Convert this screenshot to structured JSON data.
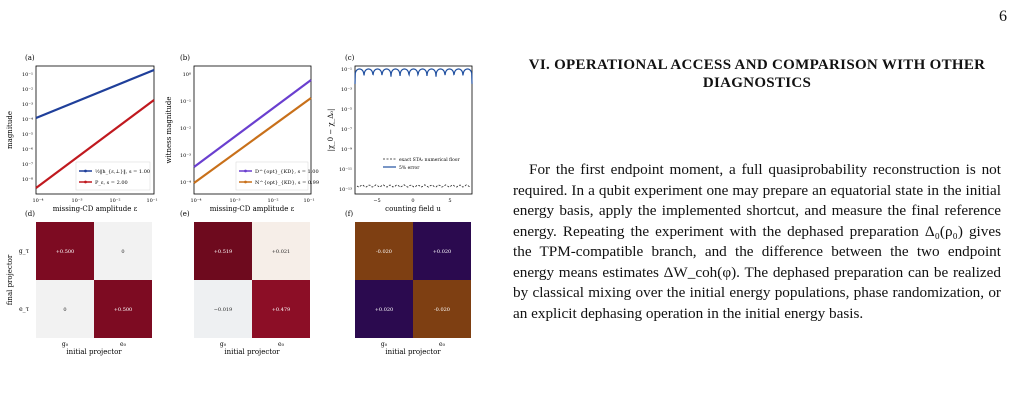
{
  "page_number": "6",
  "section": {
    "title": "VI.   OPERATIONAL ACCESS AND COMPARISON WITH OTHER DIAGNOSTICS",
    "paragraph": "For the first endpoint moment, a full quasiprobability reconstruction is not required. In a qubit experiment one may prepare an equatorial state in the initial energy basis, apply the implemented shortcut, and measure the final reference energy. Repeating the experiment with the dephased preparation Δ₀(ρ₀) gives the TPM-compatible branch, and the difference between the two endpoint energy means estimates ΔW_coh(φ). The dephased preparation can be realized by classical mixing over the initial energy populations, phase randomization, or an explicit dephasing operation in the initial energy basis."
  },
  "chart_data": [
    {
      "panel": "(a)",
      "type": "line",
      "xscale": "log",
      "yscale": "log",
      "xlabel": "missing-CD amplitude ε",
      "ylabel": "magnitude",
      "xlim": [
        0.0001,
        0.1
      ],
      "ylim": [
        1e-09,
        1
      ],
      "xticks": [
        "10⁻⁴",
        "10⁻³",
        "10⁻²",
        "10⁻¹"
      ],
      "yticks": [
        "10⁻¹",
        "10⁻²",
        "10⁻³",
        "10⁻⁴",
        "10⁻⁵",
        "10⁻⁶",
        "10⁻⁷",
        "10⁻⁸"
      ],
      "series": [
        {
          "name": "½‖h_{ε,⊥}‖, s = 1.00",
          "color": "#1f3f9a",
          "x": [
            0.0001,
            0.1
          ],
          "y": [
            0.000126,
            0.126
          ]
        },
        {
          "name": "P_ε, s = 2.00",
          "color": "#c0191f",
          "x": [
            0.0001,
            0.1
          ],
          "y": [
            1e-08,
            0.01
          ]
        }
      ]
    },
    {
      "panel": "(b)",
      "type": "line",
      "xscale": "log",
      "yscale": "log",
      "xlabel": "missing-CD amplitude ε",
      "ylabel": "witness magnitude",
      "xlim": [
        0.0001,
        0.1
      ],
      "ylim": [
        3e-05,
        2
      ],
      "xticks": [
        "10⁻⁴",
        "10⁻³",
        "10⁻²",
        "10⁻¹"
      ],
      "yticks": [
        "10⁰",
        "10⁻¹",
        "10⁻²",
        "10⁻³",
        "10⁻⁴"
      ],
      "series": [
        {
          "name": "D^{opt}_{KD}, s = 1.00",
          "color": "#6a3fcf",
          "x": [
            0.0001,
            0.1
          ],
          "y": [
            0.00022,
            0.22
          ]
        },
        {
          "name": "N^{opt}_{KD}, s = 0.99",
          "color": "#c8701a",
          "x": [
            0.0001,
            0.1
          ],
          "y": [
            5e-05,
            0.05
          ]
        }
      ]
    },
    {
      "panel": "(c)",
      "type": "line",
      "yscale": "log",
      "xlabel": "counting field u",
      "ylabel": "|χ_0 − χ_Δ₀|",
      "xlim": [
        -8,
        8
      ],
      "ylim": [
        1e-15,
        0.1
      ],
      "xticks": [
        "−5",
        "0",
        "5"
      ],
      "yticks": [
        "10⁻¹",
        "10⁻³",
        "10⁻⁵",
        "10⁻⁷",
        "10⁻⁹",
        "10⁻¹¹",
        "10⁻¹³"
      ],
      "series": [
        {
          "name": "exact STA: numerical floor",
          "color": "#222222",
          "style": "dashed"
        },
        {
          "name": "5% error",
          "color": "#1f4fa0",
          "style": "solid"
        }
      ]
    },
    {
      "panel": "(d)",
      "type": "heatmap",
      "xlabel": "initial projector",
      "ylabel": "final projector",
      "xcategories": [
        "g₀",
        "e₀"
      ],
      "ycategories": [
        "g_τ",
        "e_τ"
      ],
      "values": [
        [
          "+0.500",
          "0"
        ],
        [
          "0",
          "+0.500"
        ]
      ]
    },
    {
      "panel": "(e)",
      "type": "heatmap",
      "xlabel": "initial projector",
      "xcategories": [
        "g₀",
        "e₀"
      ],
      "values": [
        [
          "+0.519",
          "+0.021"
        ],
        [
          "−0.019",
          "+0.479"
        ]
      ]
    },
    {
      "panel": "(f)",
      "type": "heatmap",
      "xlabel": "initial projector",
      "xcategories": [
        "g₀",
        "e₀"
      ],
      "values": [
        [
          "-0.020",
          "+0.020"
        ],
        [
          "+0.020",
          "-0.020"
        ]
      ]
    }
  ]
}
